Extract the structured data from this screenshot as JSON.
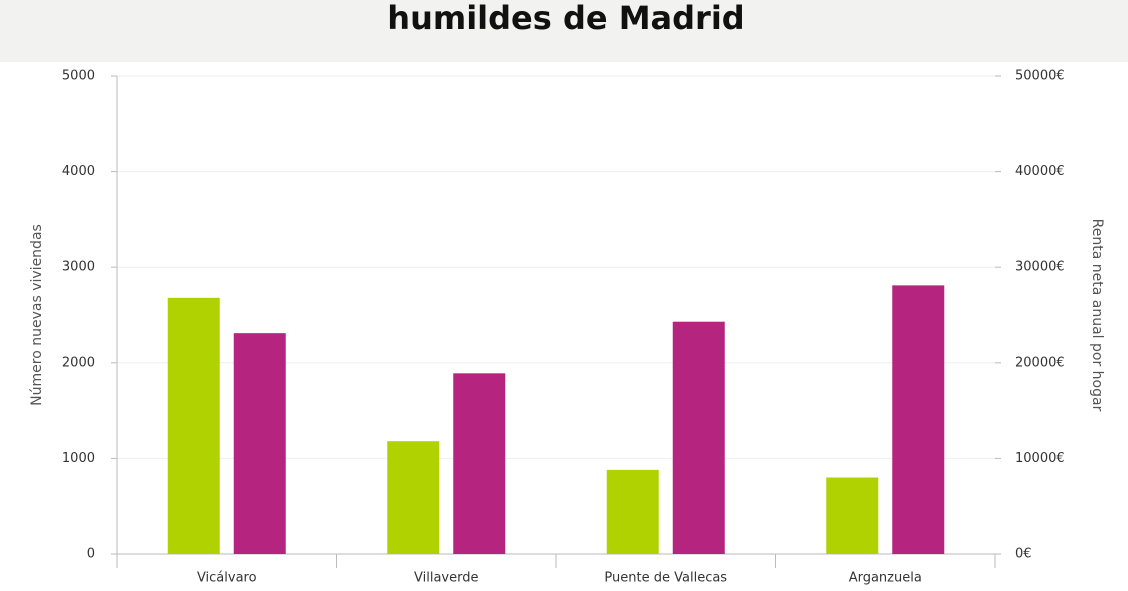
{
  "chart_data": {
    "type": "bar",
    "title": "humildes de Madrid",
    "y_label": "Número nuevas viviendas",
    "y2_label": "Renta neta anual por hogar",
    "categories": [
      "Vicálvaro",
      "Villaverde",
      "Puente de Vallecas",
      "Arganzuela"
    ],
    "series": [
      {
        "color": "#b0d200",
        "values": [
          2680,
          1180,
          880,
          800
        ]
      },
      {
        "color": "#b5257f",
        "axis": "y2",
        "values": [
          23100,
          18900,
          24300,
          28100
        ]
      }
    ],
    "ylim": [
      0,
      5000
    ],
    "yticks": [
      0,
      1000,
      2000,
      3000,
      4000,
      5000
    ],
    "y2lim": [
      0,
      50000
    ],
    "y2ticks": [
      {
        "value": 0,
        "label": "0€"
      },
      {
        "value": 10000,
        "label": "10000€"
      },
      {
        "value": 20000,
        "label": "20000€"
      },
      {
        "value": 30000,
        "label": "30000€"
      },
      {
        "value": 40000,
        "label": "40000€"
      },
      {
        "value": 50000,
        "label": "50000€"
      }
    ],
    "grid": true
  }
}
